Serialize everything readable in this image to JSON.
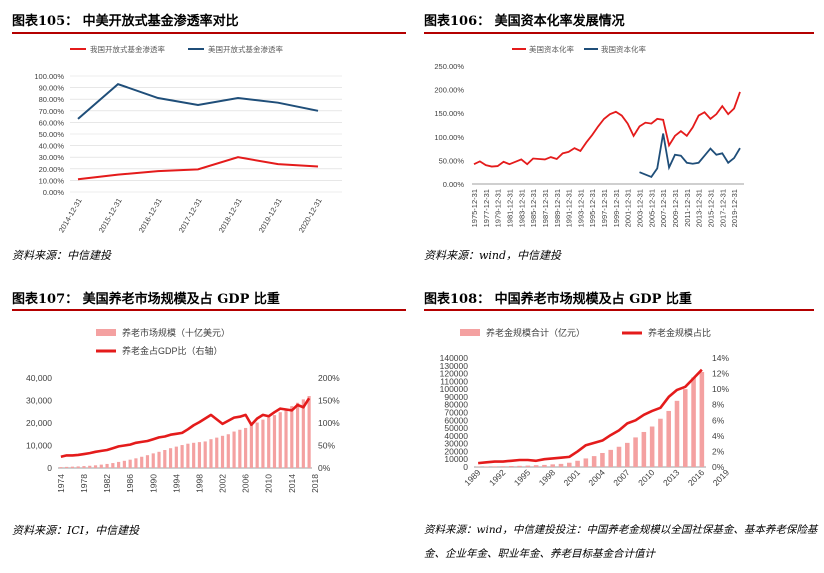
{
  "panels": [
    {
      "title": "图表105：  中美开放式基金渗透率对比",
      "source": "资料来源：中信建投"
    },
    {
      "title": "图表106：  美国资本化率发展情况",
      "source": "资料来源：wind，中信建投"
    },
    {
      "title": "图表107：  美国养老市场规模及占 GDP 比重",
      "source": "资料来源：ICI，中信建投"
    },
    {
      "title": "图表108：  中国养老市场规模及占 GDP 比重",
      "source": "资料来源：wind，中信建投投注：中国养老金规模以全国社保基金、基本养老保险基",
      "source2": "金、企业年金、职业年金、养老目标基金合计值计"
    }
  ],
  "colors": {
    "red": "#e41b1b",
    "navy": "#1f4e79",
    "pink": "#f4a1a1",
    "grid": "#d9d9d9",
    "axis": "#7f7f7f"
  },
  "chart_data": [
    {
      "type": "line",
      "title": "中美开放式基金渗透率对比",
      "categories": [
        "2014-12-31",
        "2015-12-31",
        "2016-12-31",
        "2017-12-31",
        "2018-12-31",
        "2019-12-31",
        "2020-12-31"
      ],
      "yticks": [
        "0.00%",
        "10.00%",
        "20.00%",
        "30.00%",
        "40.00%",
        "50.00%",
        "60.00%",
        "70.00%",
        "80.00%",
        "90.00%",
        "100.00%"
      ],
      "ylim": [
        0,
        100
      ],
      "legend": [
        "我国开放式基金渗透率",
        "美国开放式基金渗透率"
      ],
      "series": [
        {
          "name": "我国开放式基金渗透率",
          "color": "red",
          "values": [
            11,
            15,
            18,
            19.5,
            30,
            24,
            22
          ]
        },
        {
          "name": "美国开放式基金渗透率",
          "color": "navy",
          "values": [
            63,
            93,
            81,
            75,
            81,
            77,
            70
          ]
        }
      ]
    },
    {
      "type": "line",
      "title": "美国资本化率发展情况",
      "xlabels": [
        "1975-12-31",
        "1977-12-31",
        "1979-12-31",
        "1981-12-31",
        "1983-12-31",
        "1985-12-31",
        "1987-12-31",
        "1989-12-31",
        "1991-12-31",
        "1993-12-31",
        "1995-12-31",
        "1997-12-31",
        "1999-12-31",
        "2001-12-31",
        "2003-12-31",
        "2005-12-31",
        "2007-12-31",
        "2009-12-31",
        "2011-12-31",
        "2013-12-31",
        "2015-12-31",
        "2017-12-31",
        "2019-12-31"
      ],
      "yticks": [
        "0.00%",
        "50.00%",
        "100.00%",
        "150.00%",
        "200.00%",
        "250.00%"
      ],
      "ylim": [
        0,
        250
      ],
      "legend": [
        "美国资本化率",
        "我国资本化率"
      ],
      "series": [
        {
          "name": "美国资本化率",
          "color": "red",
          "x_start": 1975,
          "values": [
            42,
            48,
            40,
            37,
            38,
            47,
            42,
            47,
            52,
            42,
            54,
            53,
            52,
            57,
            53,
            65,
            68,
            76,
            70,
            88,
            104,
            122,
            138,
            148,
            153,
            145,
            128,
            102,
            122,
            130,
            128,
            138,
            136,
            82,
            102,
            112,
            102,
            120,
            145,
            152,
            138,
            148,
            165,
            148,
            160,
            195
          ]
        },
        {
          "name": "我国资本化率",
          "color": "navy",
          "x_start": 2003,
          "values": [
            25,
            20,
            15,
            33,
            107,
            35,
            62,
            60,
            45,
            43,
            45,
            60,
            75,
            62,
            65,
            45,
            55,
            76
          ]
        }
      ]
    },
    {
      "type": "bar+line",
      "title": "美国养老市场规模及占 GDP 比重",
      "x_start": 1974,
      "xlabels": [
        "1974",
        "1978",
        "1982",
        "1986",
        "1990",
        "1994",
        "1998",
        "2002",
        "2006",
        "2010",
        "2014",
        "2018"
      ],
      "yticks_left": [
        "0",
        "10,000",
        "20,000",
        "30,000",
        "40,000"
      ],
      "yticks_right": [
        "0%",
        "50%",
        "100%",
        "150%",
        "200%"
      ],
      "ylim_left": [
        0,
        40000
      ],
      "ylim_right": [
        0,
        200
      ],
      "legend": [
        "养老市场规模（十亿美元）",
        "养老金占GDP比（右轴）"
      ],
      "bars": [
        400,
        500,
        600,
        700,
        850,
        1000,
        1200,
        1500,
        1800,
        2200,
        2700,
        3200,
        3700,
        4300,
        5000,
        5700,
        6500,
        7200,
        8000,
        8800,
        9500,
        10200,
        10800,
        11200,
        11500,
        11800,
        12800,
        13500,
        14300,
        15000,
        16200,
        17000,
        17800,
        19200,
        20200,
        21500,
        22500,
        23500,
        24800,
        25800,
        27500,
        29000,
        30500,
        32000
      ],
      "line": [
        25,
        28,
        28,
        29,
        31,
        33,
        36,
        38,
        40,
        44,
        48,
        50,
        52,
        56,
        58,
        60,
        64,
        68,
        70,
        74,
        76,
        78,
        86,
        95,
        102,
        110,
        118,
        108,
        98,
        105,
        112,
        114,
        118,
        96,
        110,
        118,
        115,
        124,
        132,
        130,
        128,
        140,
        135,
        155
      ]
    },
    {
      "type": "bar+line",
      "title": "中国养老市场规模及占 GDP 比重",
      "x_start": 1989,
      "xlabels": [
        "1989",
        "1992",
        "1995",
        "1998",
        "2001",
        "2004",
        "2007",
        "2010",
        "2013",
        "2016",
        "2019"
      ],
      "yticks_left": [
        "0",
        "10000",
        "20000",
        "30000",
        "40000",
        "50000",
        "60000",
        "70000",
        "80000",
        "90000",
        "100000",
        "110000",
        "120000",
        "130000",
        "140000"
      ],
      "yticks_right": [
        "0%",
        "2%",
        "4%",
        "6%",
        "8%",
        "10%",
        "12%",
        "14%"
      ],
      "ylim_left": [
        0,
        140000
      ],
      "ylim_right": [
        0,
        14
      ],
      "legend": [
        "养老金规模合计（亿元）",
        "养老金规模占比"
      ],
      "bars": [
        400,
        600,
        800,
        1000,
        1300,
        1500,
        1800,
        2300,
        2700,
        3400,
        4000,
        5500,
        8000,
        11000,
        14000,
        18000,
        22000,
        26000,
        31000,
        38000,
        45000,
        52000,
        62000,
        72000,
        85000,
        100000,
        115000,
        122000
      ],
      "line": [
        0.5,
        0.6,
        0.7,
        0.7,
        0.8,
        0.9,
        0.9,
        0.8,
        1.0,
        1.1,
        1.2,
        1.3,
        2.0,
        2.8,
        3.1,
        3.4,
        4.1,
        4.7,
        5.6,
        6.0,
        6.7,
        7.2,
        7.6,
        9.0,
        9.9,
        10.3,
        11.4,
        12.5
      ]
    }
  ]
}
